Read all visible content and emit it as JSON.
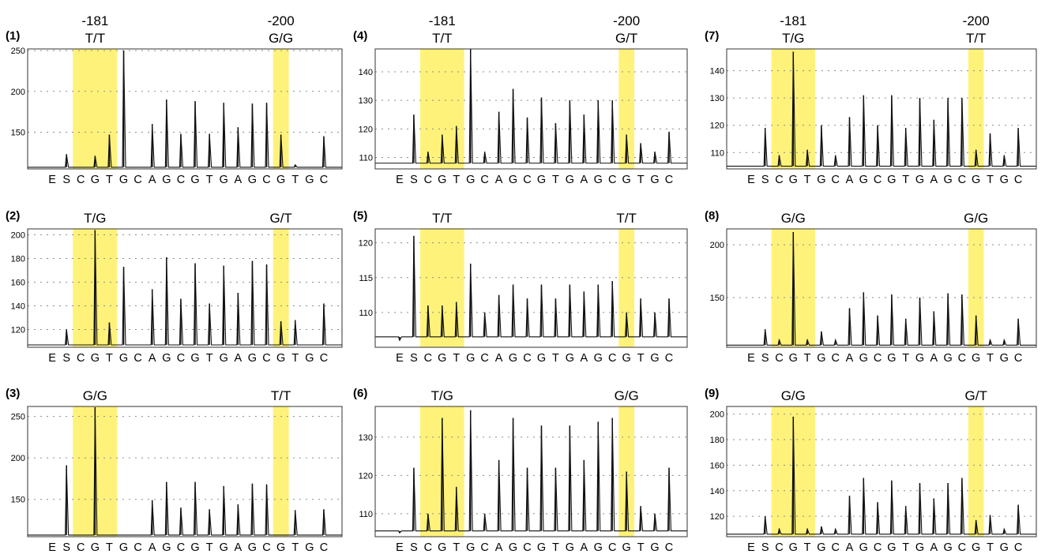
{
  "chart_data": [
    {
      "type": "line",
      "panel_label": "(1)",
      "genotype_left": {
        "position": "-181",
        "genotype": "T/T"
      },
      "genotype_right": {
        "position": "-200",
        "genotype": "G/G"
      },
      "y_ticks": [
        150,
        200,
        250
      ],
      "ylim": [
        105,
        252
      ],
      "baseline": 107,
      "sequence": [
        "E",
        "S",
        "C",
        "G",
        "T",
        "G",
        "C",
        "A",
        "G",
        "C",
        "G",
        "T",
        "G",
        "A",
        "G",
        "C",
        "G",
        "T",
        "G",
        "C"
      ],
      "peaks": [
        107,
        123,
        107,
        121,
        147,
        250,
        107,
        160,
        190,
        148,
        188,
        148,
        186,
        156,
        185,
        186,
        147,
        110,
        107,
        145
      ],
      "highlight_ranges": [
        [
          2,
          4
        ],
        [
          16,
          16
        ]
      ]
    },
    {
      "type": "line",
      "panel_label": "(2)",
      "genotype_left": {
        "position": "",
        "genotype": "T/G"
      },
      "genotype_right": {
        "position": "",
        "genotype": "G/T"
      },
      "y_ticks": [
        120,
        140,
        160,
        180,
        200
      ],
      "ylim": [
        105,
        205
      ],
      "baseline": 107,
      "sequence": [
        "E",
        "S",
        "C",
        "G",
        "T",
        "G",
        "C",
        "A",
        "G",
        "C",
        "G",
        "T",
        "G",
        "A",
        "G",
        "C",
        "G",
        "T",
        "G",
        "C"
      ],
      "peaks": [
        107,
        120,
        107,
        204,
        126,
        173,
        107,
        154,
        181,
        146,
        176,
        142,
        174,
        151,
        178,
        175,
        127,
        128,
        107,
        142
      ],
      "highlight_ranges": [
        [
          2,
          4
        ],
        [
          16,
          16
        ]
      ]
    },
    {
      "type": "line",
      "panel_label": "(3)",
      "genotype_left": {
        "position": "",
        "genotype": "G/G"
      },
      "genotype_right": {
        "position": "",
        "genotype": "T/T"
      },
      "y_ticks": [
        150,
        200,
        250
      ],
      "ylim": [
        105,
        262
      ],
      "baseline": 107,
      "sequence": [
        "E",
        "S",
        "C",
        "G",
        "T",
        "G",
        "C",
        "A",
        "G",
        "C",
        "G",
        "T",
        "G",
        "A",
        "G",
        "C",
        "G",
        "T",
        "G",
        "C"
      ],
      "peaks": [
        107,
        191,
        107,
        261,
        107,
        107,
        107,
        149,
        171,
        140,
        171,
        138,
        166,
        144,
        169,
        168,
        107,
        137,
        107,
        138
      ],
      "highlight_ranges": [
        [
          2,
          4
        ],
        [
          16,
          16
        ]
      ]
    },
    {
      "type": "line",
      "panel_label": "(4)",
      "genotype_left": {
        "position": "-181",
        "genotype": "T/T"
      },
      "genotype_right": {
        "position": "-200",
        "genotype": "G/T"
      },
      "y_ticks": [
        110,
        120,
        130,
        140
      ],
      "ylim": [
        106,
        148
      ],
      "baseline": 108,
      "sequence": [
        "E",
        "S",
        "C",
        "G",
        "T",
        "G",
        "C",
        "A",
        "G",
        "C",
        "G",
        "T",
        "G",
        "A",
        "G",
        "C",
        "G",
        "T",
        "G",
        "C"
      ],
      "peaks": [
        108,
        125,
        112,
        118,
        121,
        148,
        112,
        126,
        134,
        124,
        131,
        122,
        130,
        125,
        130,
        130,
        118,
        115,
        112,
        119
      ],
      "highlight_ranges": [
        [
          2,
          4
        ],
        [
          16,
          16
        ]
      ]
    },
    {
      "type": "line",
      "panel_label": "(5)",
      "genotype_left": {
        "position": "",
        "genotype": "T/T"
      },
      "genotype_right": {
        "position": "",
        "genotype": "T/T"
      },
      "y_ticks": [
        110,
        115,
        120
      ],
      "ylim": [
        105,
        122
      ],
      "baseline": 106.5,
      "sequence": [
        "E",
        "S",
        "C",
        "G",
        "T",
        "G",
        "C",
        "A",
        "G",
        "C",
        "G",
        "T",
        "G",
        "A",
        "G",
        "C",
        "G",
        "T",
        "G",
        "C"
      ],
      "peaks": [
        106,
        121,
        111,
        111,
        111.5,
        117,
        110,
        112.5,
        114,
        112,
        114,
        112,
        114,
        113,
        114,
        114.5,
        110,
        112,
        110,
        112
      ],
      "highlight_ranges": [
        [
          2,
          4
        ],
        [
          16,
          16
        ]
      ]
    },
    {
      "type": "line",
      "panel_label": "(6)",
      "genotype_left": {
        "position": "",
        "genotype": "T/G"
      },
      "genotype_right": {
        "position": "",
        "genotype": "G/G"
      },
      "y_ticks": [
        110,
        120,
        130
      ],
      "ylim": [
        104,
        138
      ],
      "baseline": 105.5,
      "sequence": [
        "E",
        "S",
        "C",
        "G",
        "T",
        "G",
        "C",
        "A",
        "G",
        "C",
        "G",
        "T",
        "G",
        "A",
        "G",
        "C",
        "G",
        "T",
        "G",
        "C"
      ],
      "peaks": [
        105,
        122,
        110,
        135,
        117,
        137,
        110,
        124,
        135,
        122,
        133,
        122,
        133,
        124,
        134,
        135,
        121,
        112,
        110,
        122
      ],
      "highlight_ranges": [
        [
          2,
          4
        ],
        [
          16,
          16
        ]
      ]
    },
    {
      "type": "line",
      "panel_label": "(7)",
      "genotype_left": {
        "position": "-181",
        "genotype": "T/G"
      },
      "genotype_right": {
        "position": "-200",
        "genotype": "T/T"
      },
      "y_ticks": [
        110,
        120,
        130,
        140
      ],
      "ylim": [
        104,
        148
      ],
      "baseline": 105,
      "sequence": [
        "E",
        "S",
        "C",
        "G",
        "T",
        "G",
        "C",
        "A",
        "G",
        "C",
        "G",
        "T",
        "G",
        "A",
        "G",
        "C",
        "G",
        "T",
        "G",
        "C"
      ],
      "peaks": [
        105,
        119,
        109,
        147,
        111,
        120,
        109,
        123,
        131,
        120,
        131,
        119,
        130,
        122,
        130,
        130,
        111,
        117,
        109,
        119
      ],
      "highlight_ranges": [
        [
          2,
          4
        ],
        [
          16,
          16
        ]
      ]
    },
    {
      "type": "line",
      "panel_label": "(8)",
      "genotype_left": {
        "position": "",
        "genotype": "G/G"
      },
      "genotype_right": {
        "position": "",
        "genotype": "G/G"
      },
      "y_ticks": [
        150,
        200
      ],
      "ylim": [
        103,
        215
      ],
      "baseline": 105,
      "sequence": [
        "E",
        "S",
        "C",
        "G",
        "T",
        "G",
        "C",
        "A",
        "G",
        "C",
        "G",
        "T",
        "G",
        "A",
        "G",
        "C",
        "G",
        "T",
        "G",
        "C"
      ],
      "peaks": [
        105,
        120,
        110,
        212,
        110,
        118,
        110,
        140,
        155,
        133,
        153,
        130,
        150,
        137,
        154,
        153,
        133,
        110,
        110,
        130
      ],
      "highlight_ranges": [
        [
          2,
          4
        ],
        [
          16,
          16
        ]
      ]
    },
    {
      "type": "line",
      "panel_label": "(9)",
      "genotype_left": {
        "position": "",
        "genotype": "G/G"
      },
      "genotype_right": {
        "position": "",
        "genotype": "G/T"
      },
      "y_ticks": [
        120,
        140,
        160,
        180,
        200
      ],
      "ylim": [
        104,
        206
      ],
      "baseline": 106,
      "sequence": [
        "E",
        "S",
        "C",
        "G",
        "T",
        "G",
        "C",
        "A",
        "G",
        "C",
        "G",
        "T",
        "G",
        "A",
        "G",
        "C",
        "G",
        "T",
        "G",
        "C"
      ],
      "peaks": [
        106,
        120,
        110,
        198,
        110,
        112,
        110,
        136,
        150,
        131,
        148,
        128,
        146,
        134,
        146,
        150,
        117,
        121,
        110,
        129
      ],
      "highlight_ranges": [
        [
          2,
          4
        ],
        [
          16,
          16
        ]
      ]
    }
  ]
}
